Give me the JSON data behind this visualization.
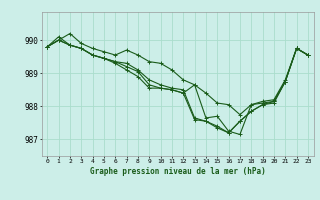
{
  "title": "Graphe pression niveau de la mer (hPa)",
  "bg_color": "#cceee8",
  "grid_color": "#aaddcc",
  "line_color": "#1a5c1a",
  "ylim": [
    986.5,
    990.85
  ],
  "xlim": [
    -0.5,
    23.5
  ],
  "yticks": [
    987,
    988,
    989,
    990
  ],
  "xticks": [
    0,
    1,
    2,
    3,
    4,
    5,
    6,
    7,
    8,
    9,
    10,
    11,
    12,
    13,
    14,
    15,
    16,
    17,
    18,
    19,
    20,
    21,
    22,
    23
  ],
  "lines": [
    [
      989.8,
      990.0,
      990.2,
      989.9,
      989.75,
      989.65,
      989.55,
      989.7,
      989.55,
      989.35,
      989.3,
      989.1,
      988.8,
      988.65,
      987.65,
      987.7,
      987.25,
      987.15,
      988.05,
      988.1,
      988.15,
      988.75,
      989.75,
      989.55
    ],
    [
      989.8,
      990.0,
      989.85,
      989.75,
      989.55,
      989.45,
      989.35,
      989.3,
      989.1,
      988.8,
      988.65,
      988.55,
      988.5,
      987.65,
      987.55,
      987.4,
      987.2,
      987.55,
      987.85,
      988.05,
      988.15,
      988.75,
      989.75,
      989.55
    ],
    [
      989.8,
      990.1,
      989.85,
      989.75,
      989.55,
      989.45,
      989.3,
      989.1,
      988.9,
      988.55,
      988.55,
      988.5,
      988.4,
      988.65,
      988.4,
      988.1,
      988.05,
      987.75,
      988.05,
      988.15,
      988.2,
      988.8,
      989.75,
      989.55
    ],
    [
      989.8,
      990.0,
      989.85,
      989.75,
      989.55,
      989.45,
      989.35,
      989.2,
      989.05,
      988.65,
      988.55,
      988.5,
      988.4,
      987.6,
      987.55,
      987.35,
      987.2,
      987.55,
      987.85,
      988.05,
      988.1,
      988.75,
      989.75,
      989.55
    ]
  ],
  "figwidth": 3.2,
  "figheight": 2.0,
  "dpi": 100
}
